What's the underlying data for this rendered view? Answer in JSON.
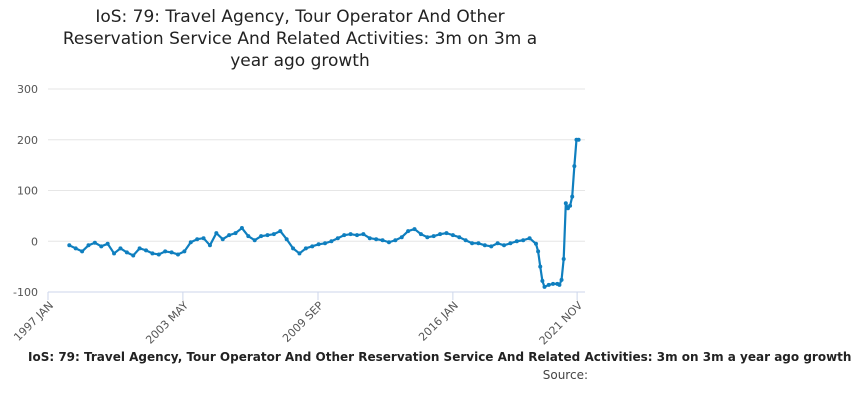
{
  "chart_data": {
    "type": "line",
    "title": "IoS: 79: Travel Agency, Tour Operator And Other Reservation Service And Related Activities: 3m on 3m a year ago growth",
    "title_lines": [
      "IoS: 79: Travel Agency, Tour Operator And Other",
      "Reservation Service And Related Activities: 3m on 3m a",
      "year ago growth"
    ],
    "xlabel": "IoS: 79: Travel Agency, Tour Operator And Other Reservation Service And Related Activities: 3m on 3m a year ago growth",
    "ylabel": "",
    "source_label": "Source:",
    "ylim": [
      -100,
      300
    ],
    "yticks": [
      -100,
      0,
      100,
      200,
      300
    ],
    "xlim": [
      1997.0,
      2022.2
    ],
    "xticks": [
      {
        "label": "1997 JAN",
        "x": 1997.0
      },
      {
        "label": "2003 MAY",
        "x": 2003.33
      },
      {
        "label": "2009 SEP",
        "x": 2009.67
      },
      {
        "label": "2016 JAN",
        "x": 2016.0
      },
      {
        "label": "2021 NOV",
        "x": 2021.83
      }
    ],
    "series_color": "#0f7fbf",
    "grid": true,
    "series": [
      {
        "name": "3m on 3m a year ago growth",
        "x": [
          1998.0,
          1998.3,
          1998.6,
          1998.9,
          1999.2,
          1999.5,
          1999.8,
          2000.1,
          2000.4,
          2000.7,
          2001.0,
          2001.3,
          2001.6,
          2001.9,
          2002.2,
          2002.5,
          2002.8,
          2003.1,
          2003.4,
          2003.7,
          2004.0,
          2004.3,
          2004.6,
          2004.9,
          2005.2,
          2005.5,
          2005.8,
          2006.1,
          2006.4,
          2006.7,
          2007.0,
          2007.3,
          2007.6,
          2007.9,
          2008.2,
          2008.5,
          2008.8,
          2009.1,
          2009.4,
          2009.7,
          2010.0,
          2010.3,
          2010.6,
          2010.9,
          2011.2,
          2011.5,
          2011.8,
          2012.1,
          2012.4,
          2012.7,
          2013.0,
          2013.3,
          2013.6,
          2013.9,
          2014.2,
          2014.5,
          2014.8,
          2015.1,
          2015.4,
          2015.7,
          2016.0,
          2016.3,
          2016.6,
          2016.9,
          2017.2,
          2017.5,
          2017.8,
          2018.1,
          2018.4,
          2018.7,
          2019.0,
          2019.3,
          2019.6,
          2019.9,
          2020.0,
          2020.1,
          2020.2,
          2020.3,
          2020.5,
          2020.7,
          2020.9,
          2021.0,
          2021.1,
          2021.2,
          2021.3,
          2021.4,
          2021.5,
          2021.6,
          2021.7,
          2021.8,
          2021.9
        ],
        "values": [
          -8,
          -14,
          -20,
          -8,
          -3,
          -10,
          -5,
          -24,
          -14,
          -22,
          -28,
          -14,
          -18,
          -24,
          -26,
          -20,
          -22,
          -26,
          -20,
          -2,
          4,
          6,
          -8,
          16,
          4,
          12,
          16,
          26,
          10,
          2,
          10,
          12,
          14,
          20,
          4,
          -14,
          -24,
          -14,
          -10,
          -6,
          -4,
          0,
          6,
          12,
          14,
          12,
          14,
          6,
          4,
          2,
          -2,
          2,
          8,
          20,
          24,
          14,
          8,
          10,
          14,
          16,
          12,
          8,
          2,
          -4,
          -4,
          -8,
          -10,
          -4,
          -8,
          -4,
          0,
          2,
          6,
          -5,
          -20,
          -50,
          -78,
          -90,
          -86,
          -84,
          -84,
          -86,
          -76,
          -35,
          75,
          65,
          70,
          88,
          148,
          200,
          200
        ]
      }
    ]
  }
}
